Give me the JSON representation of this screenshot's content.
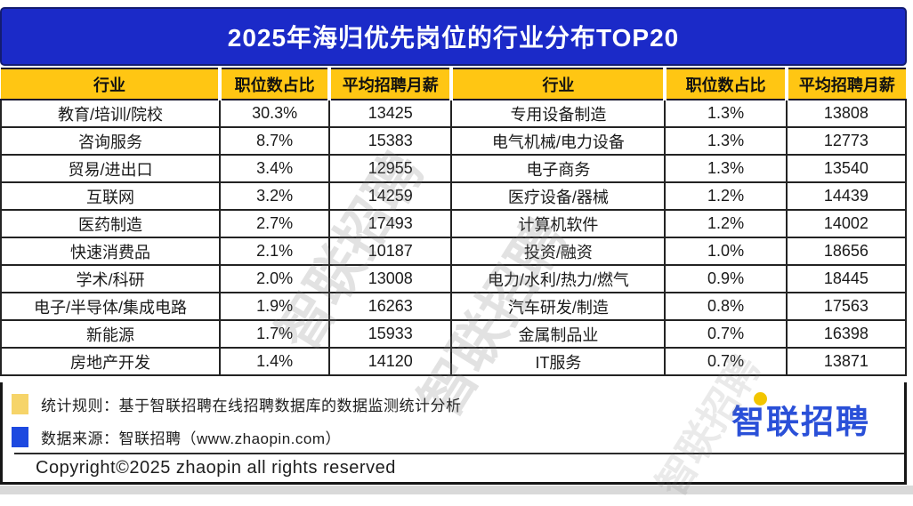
{
  "title": "2025年海归优先岗位的行业分布TOP20",
  "chart_data": {
    "type": "table",
    "title": "2025年海归优先岗位的行业分布TOP20",
    "columns": [
      "行业",
      "职位数占比",
      "平均招聘月薪"
    ],
    "layout": "two-column table: entries 1-10 in left half, entries 11-20 in right half",
    "entries": [
      {
        "industry": "教育/培训/院校",
        "share": "30.3%",
        "salary": 13425
      },
      {
        "industry": "咨询服务",
        "share": "8.7%",
        "salary": 15383
      },
      {
        "industry": "贸易/进出口",
        "share": "3.4%",
        "salary": 12955
      },
      {
        "industry": "互联网",
        "share": "3.2%",
        "salary": 14259
      },
      {
        "industry": "医药制造",
        "share": "2.7%",
        "salary": 17493
      },
      {
        "industry": "快速消费品",
        "share": "2.1%",
        "salary": 10187
      },
      {
        "industry": "学术/科研",
        "share": "2.0%",
        "salary": 13008
      },
      {
        "industry": "电子/半导体/集成电路",
        "share": "1.9%",
        "salary": 16263
      },
      {
        "industry": "新能源",
        "share": "1.7%",
        "salary": 15933
      },
      {
        "industry": "房地产开发",
        "share": "1.4%",
        "salary": 14120
      },
      {
        "industry": "专用设备制造",
        "share": "1.3%",
        "salary": 13808
      },
      {
        "industry": "电气机械/电力设备",
        "share": "1.3%",
        "salary": 12773
      },
      {
        "industry": "电子商务",
        "share": "1.3%",
        "salary": 13540
      },
      {
        "industry": "医疗设备/器械",
        "share": "1.2%",
        "salary": 14439
      },
      {
        "industry": "计算机软件",
        "share": "1.2%",
        "salary": 14002
      },
      {
        "industry": "投资/融资",
        "share": "1.0%",
        "salary": 18656
      },
      {
        "industry": "电力/水利/热力/燃气",
        "share": "0.9%",
        "salary": 18445
      },
      {
        "industry": "汽车研发/制造",
        "share": "0.8%",
        "salary": 17563
      },
      {
        "industry": "金属制品业",
        "share": "0.7%",
        "salary": 16398
      },
      {
        "industry": "IT服务",
        "share": "0.7%",
        "salary": 13871
      }
    ]
  },
  "footer": {
    "legend": [
      {
        "color": "#f6d469",
        "text": "统计规则：基于智联招聘在线招聘数据库的数据监测统计分析"
      },
      {
        "color": "#1d49e0",
        "text": "数据来源：智联招聘（www.zhaopin.com）"
      }
    ],
    "copyright": "Copyright©2025 zhaopin all rights reserved",
    "logo_text": "智联招聘"
  },
  "watermark": "智联招聘",
  "colors": {
    "title_bg": "#1b2ac8",
    "title_text": "#ffffff",
    "header_bg": "#ffc613",
    "table_border": "#232323",
    "legend_yellow": "#f6d469",
    "legend_blue": "#1d49e0",
    "logo_blue": "#2a50d8",
    "logo_dot_yellow": "#f2c500"
  }
}
